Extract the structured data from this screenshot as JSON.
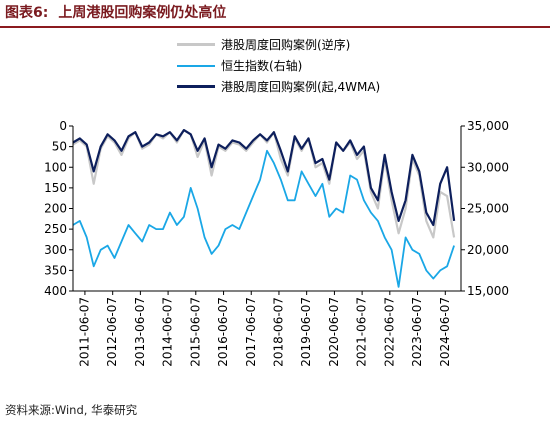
{
  "figure": {
    "label": "图表6:",
    "title": "上周港股回购案例仍处高位"
  },
  "source": "资料来源:Wind, 华泰研究",
  "chart_data": {
    "type": "line",
    "title": "上周港股回购案例仍处高位",
    "grid": false,
    "legend_position": "top-center",
    "x_axis": {
      "type": "date",
      "range": [
        "2011-01-01",
        "2024-12-31"
      ],
      "tick_labels": [
        "2011-06-07",
        "2012-06-07",
        "2013-06-07",
        "2014-06-07",
        "2015-06-07",
        "2016-06-07",
        "2017-06-07",
        "2018-06-07",
        "2019-06-07",
        "2020-06-07",
        "2021-06-07",
        "2022-06-07",
        "2023-06-07",
        "2024-06-07"
      ]
    },
    "y_left": {
      "range": [
        0,
        400
      ],
      "inverted": true,
      "ticks": [
        0,
        50,
        100,
        150,
        200,
        250,
        300,
        350,
        400
      ]
    },
    "y_right": {
      "range": [
        15000,
        35000
      ],
      "ticks": [
        15000,
        20000,
        25000,
        30000,
        35000
      ],
      "tick_labels": [
        "15,000",
        "20,000",
        "25,000",
        "30,000",
        "35,000"
      ]
    },
    "series": [
      {
        "name": "港股周度回购案例(逆序)",
        "axis": "left",
        "color": "#c8c8c8",
        "x": [
          "2011-01-01",
          "2011-04-01",
          "2011-07-01",
          "2011-10-01",
          "2012-01-01",
          "2012-04-01",
          "2012-07-01",
          "2012-10-01",
          "2013-01-01",
          "2013-04-01",
          "2013-07-01",
          "2013-10-01",
          "2014-01-01",
          "2014-04-01",
          "2014-07-01",
          "2014-10-01",
          "2015-01-01",
          "2015-04-01",
          "2015-07-01",
          "2015-10-01",
          "2016-01-01",
          "2016-04-01",
          "2016-07-01",
          "2016-10-01",
          "2017-01-01",
          "2017-04-01",
          "2017-07-01",
          "2017-10-01",
          "2018-01-01",
          "2018-04-01",
          "2018-07-01",
          "2018-10-01",
          "2019-01-01",
          "2019-04-01",
          "2019-07-01",
          "2019-10-01",
          "2020-01-01",
          "2020-04-01",
          "2020-07-01",
          "2020-10-01",
          "2021-01-01",
          "2021-04-01",
          "2021-07-01",
          "2021-10-01",
          "2022-01-01",
          "2022-04-01",
          "2022-07-01",
          "2022-10-01",
          "2023-01-01",
          "2023-04-01",
          "2023-07-01",
          "2023-10-01",
          "2024-01-01",
          "2024-04-01",
          "2024-07-01",
          "2024-10-01"
        ],
        "values": [
          45,
          35,
          50,
          140,
          55,
          25,
          40,
          70,
          30,
          15,
          55,
          45,
          20,
          30,
          15,
          40,
          10,
          20,
          75,
          35,
          120,
          50,
          60,
          40,
          45,
          60,
          40,
          20,
          40,
          15,
          80,
          120,
          30,
          60,
          30,
          100,
          90,
          140,
          40,
          60,
          40,
          80,
          60,
          160,
          200,
          80,
          180,
          260,
          200,
          80,
          120,
          230,
          270,
          160,
          170,
          270
        ]
      },
      {
        "name": "恒生指数(右轴)",
        "axis": "right",
        "color": "#1aa7e6",
        "x": [
          "2011-01-01",
          "2011-04-01",
          "2011-07-01",
          "2011-10-01",
          "2012-01-01",
          "2012-04-01",
          "2012-07-01",
          "2012-10-01",
          "2013-01-01",
          "2013-04-01",
          "2013-07-01",
          "2013-10-01",
          "2014-01-01",
          "2014-04-01",
          "2014-07-01",
          "2014-10-01",
          "2015-01-01",
          "2015-04-01",
          "2015-07-01",
          "2015-10-01",
          "2016-01-01",
          "2016-04-01",
          "2016-07-01",
          "2016-10-01",
          "2017-01-01",
          "2017-04-01",
          "2017-07-01",
          "2017-10-01",
          "2018-01-01",
          "2018-04-01",
          "2018-07-01",
          "2018-10-01",
          "2019-01-01",
          "2019-04-01",
          "2019-07-01",
          "2019-10-01",
          "2020-01-01",
          "2020-04-01",
          "2020-07-01",
          "2020-10-01",
          "2021-01-01",
          "2021-04-01",
          "2021-07-01",
          "2021-10-01",
          "2022-01-01",
          "2022-04-01",
          "2022-07-01",
          "2022-10-01",
          "2023-01-01",
          "2023-04-01",
          "2023-07-01",
          "2023-10-01",
          "2024-01-01",
          "2024-04-01",
          "2024-07-01",
          "2024-10-01"
        ],
        "values": [
          23000,
          23500,
          21500,
          18000,
          20000,
          20500,
          19000,
          21000,
          23000,
          22000,
          21000,
          23000,
          22500,
          22500,
          24500,
          23000,
          24000,
          27500,
          25000,
          21500,
          19500,
          20500,
          22500,
          23000,
          22500,
          24500,
          26500,
          28500,
          32000,
          30500,
          28500,
          26000,
          26000,
          29500,
          28000,
          26500,
          28000,
          24000,
          25000,
          24500,
          29000,
          28500,
          26000,
          24500,
          23500,
          21500,
          20000,
          15500,
          21500,
          20000,
          19500,
          17500,
          16500,
          17500,
          18000,
          20500
        ]
      },
      {
        "name": "港股周度回购案例(起,4WMA)",
        "axis": "left",
        "color": "#0d1f5c",
        "x": [
          "2011-01-01",
          "2011-04-01",
          "2011-07-01",
          "2011-10-01",
          "2012-01-01",
          "2012-04-01",
          "2012-07-01",
          "2012-10-01",
          "2013-01-01",
          "2013-04-01",
          "2013-07-01",
          "2013-10-01",
          "2014-01-01",
          "2014-04-01",
          "2014-07-01",
          "2014-10-01",
          "2015-01-01",
          "2015-04-01",
          "2015-07-01",
          "2015-10-01",
          "2016-01-01",
          "2016-04-01",
          "2016-07-01",
          "2016-10-01",
          "2017-01-01",
          "2017-04-01",
          "2017-07-01",
          "2017-10-01",
          "2018-01-01",
          "2018-04-01",
          "2018-07-01",
          "2018-10-01",
          "2019-01-01",
          "2019-04-01",
          "2019-07-01",
          "2019-10-01",
          "2020-01-01",
          "2020-04-01",
          "2020-07-01",
          "2020-10-01",
          "2021-01-01",
          "2021-04-01",
          "2021-07-01",
          "2021-10-01",
          "2022-01-01",
          "2022-04-01",
          "2022-07-01",
          "2022-10-01",
          "2023-01-01",
          "2023-04-01",
          "2023-07-01",
          "2023-10-01",
          "2024-01-01",
          "2024-04-01",
          "2024-07-01",
          "2024-10-01"
        ],
        "values": [
          40,
          30,
          45,
          110,
          50,
          20,
          35,
          60,
          25,
          15,
          50,
          40,
          20,
          25,
          15,
          35,
          10,
          20,
          60,
          30,
          100,
          45,
          55,
          35,
          40,
          55,
          35,
          20,
          35,
          15,
          60,
          110,
          25,
          55,
          30,
          90,
          80,
          130,
          40,
          60,
          35,
          70,
          50,
          150,
          180,
          70,
          160,
          230,
          180,
          70,
          110,
          210,
          240,
          140,
          100,
          230
        ]
      }
    ]
  }
}
